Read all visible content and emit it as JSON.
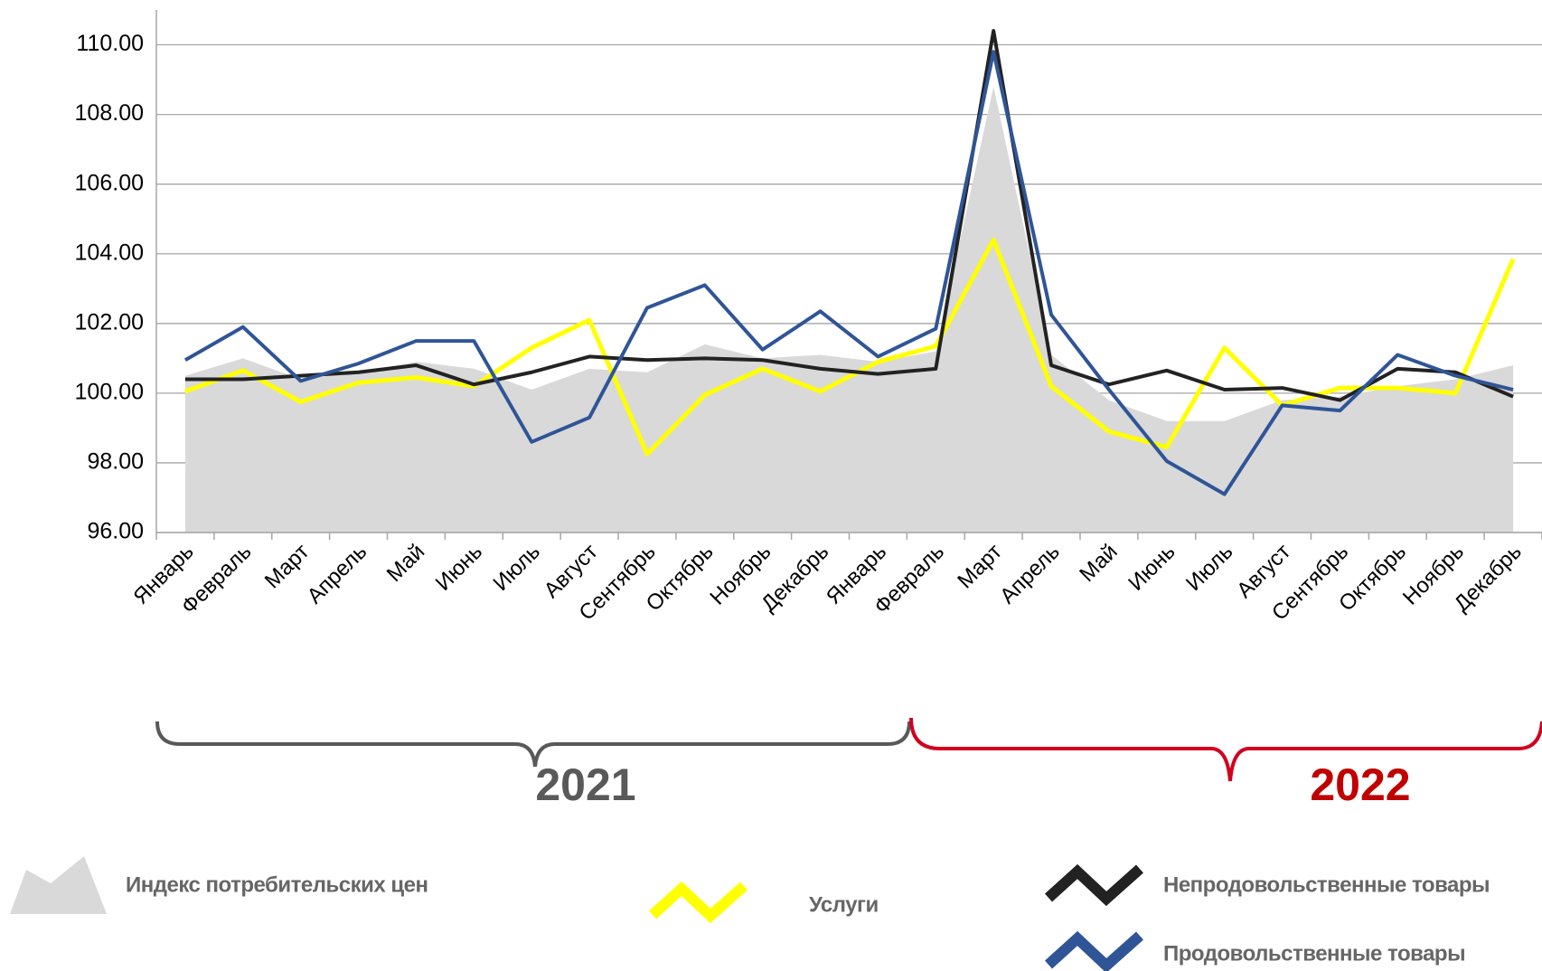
{
  "chart_data": {
    "type": "line",
    "categories": [
      "Январь",
      "Февраль",
      "Март",
      "Апрель",
      "Май",
      "Июнь",
      "Июль",
      "Август",
      "Сентябрь",
      "Октябрь",
      "Ноябрь",
      "Декабрь",
      "Январь",
      "Февраль",
      "Март",
      "Апрель",
      "Май",
      "Июнь",
      "Июль",
      "Август",
      "Сентябрь",
      "Октябрь",
      "Ноябрь",
      "Декабрь"
    ],
    "series": [
      {
        "name": "Индекс потребительских  цен",
        "color": "#d9d9d9",
        "style": "area",
        "values": [
          100.5,
          101.0,
          100.4,
          100.6,
          100.9,
          100.7,
          100.1,
          100.7,
          100.6,
          101.4,
          101.0,
          101.1,
          100.9,
          101.2,
          108.8,
          101.1,
          99.8,
          99.2,
          99.2,
          99.8,
          99.9,
          100.2,
          100.4,
          100.8
        ]
      },
      {
        "name": "Услуги",
        "color": "#ffff00",
        "style": "line",
        "values": [
          100.05,
          100.65,
          99.75,
          100.3,
          100.45,
          100.2,
          101.3,
          102.1,
          98.25,
          99.95,
          100.7,
          100.05,
          100.9,
          101.35,
          104.4,
          100.2,
          98.9,
          98.45,
          101.3,
          99.65,
          100.15,
          100.15,
          100.0,
          103.85
        ]
      },
      {
        "name": "Непродовольственные товары",
        "color": "#222222",
        "style": "line",
        "values": [
          100.4,
          100.4,
          100.5,
          100.6,
          100.8,
          100.25,
          100.6,
          101.05,
          100.95,
          101.0,
          100.95,
          100.7,
          100.55,
          100.7,
          110.4,
          100.8,
          100.25,
          100.65,
          100.1,
          100.15,
          99.8,
          100.7,
          100.6,
          99.9
        ]
      },
      {
        "name": "Продовольственные товары",
        "color": "#2f5597",
        "style": "line",
        "values": [
          100.95,
          101.9,
          100.35,
          100.85,
          101.5,
          101.5,
          98.6,
          99.3,
          102.45,
          103.1,
          101.25,
          102.35,
          101.05,
          101.85,
          109.8,
          102.25,
          100.1,
          98.05,
          97.1,
          99.65,
          99.5,
          101.1,
          100.5,
          100.1
        ]
      }
    ],
    "ylim": [
      96,
      111
    ],
    "yticks": [
      {
        "value": 96,
        "label": "96.00"
      },
      {
        "value": 98,
        "label": "98.00"
      },
      {
        "value": 100,
        "label": "100.00"
      },
      {
        "value": 102,
        "label": "102.00"
      },
      {
        "value": 104,
        "label": "104.00"
      },
      {
        "value": 106,
        "label": "106.00"
      },
      {
        "value": 108,
        "label": "108.00"
      },
      {
        "value": 110,
        "label": "110.00"
      }
    ],
    "grid": true,
    "annotations": [
      "2021",
      "2022"
    ]
  }
}
